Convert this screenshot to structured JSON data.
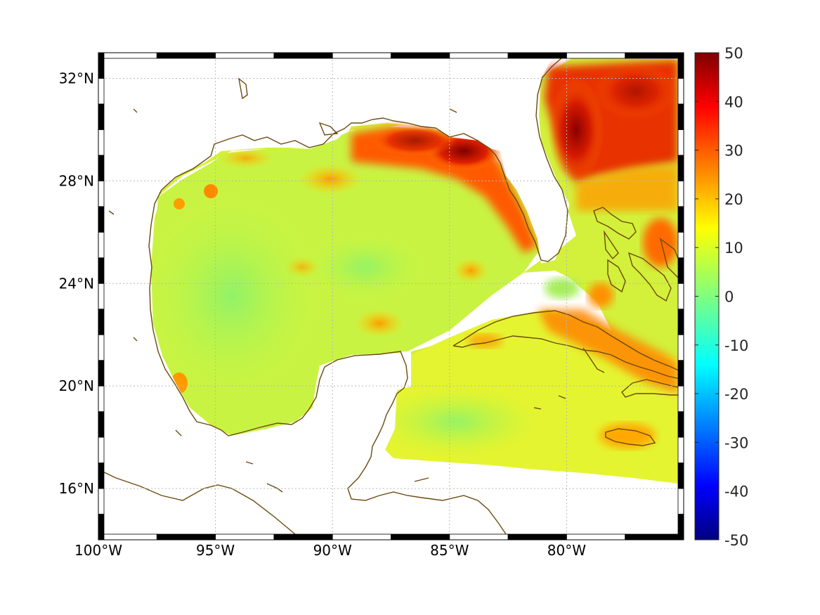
{
  "map": {
    "lon_range": [
      -100,
      -75
    ],
    "lat_range": [
      14,
      33
    ],
    "x_ticks": [
      {
        "value": -100,
        "label": "100°W"
      },
      {
        "value": -95,
        "label": "95°W"
      },
      {
        "value": -90,
        "label": "90°W"
      },
      {
        "value": -85,
        "label": "85°W"
      },
      {
        "value": -80,
        "label": "80°W"
      }
    ],
    "y_ticks": [
      {
        "value": 16,
        "label": "16°N"
      },
      {
        "value": 20,
        "label": "20°N"
      },
      {
        "value": 24,
        "label": "24°N"
      },
      {
        "value": 28,
        "label": "28°N"
      },
      {
        "value": 32,
        "label": "32°N"
      }
    ],
    "grid": true,
    "coastline_color": "#6b4a0f",
    "frame": "black-white checkered"
  },
  "colorbar": {
    "range": [
      -50,
      50
    ],
    "colormap": "jet",
    "labels": [
      "50",
      "40",
      "30",
      "20",
      "10",
      "0",
      "-10",
      "-20",
      "-30",
      "-40",
      "-50"
    ]
  }
}
